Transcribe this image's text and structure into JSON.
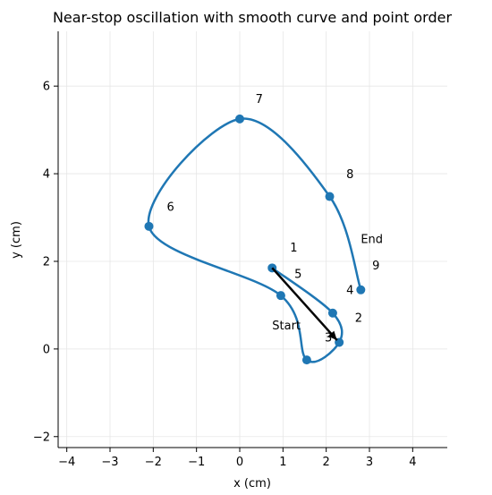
{
  "chart_data": {
    "type": "line",
    "title": "Near-stop oscillation with smooth curve and point order",
    "xlabel": "x (cm)",
    "ylabel": "y (cm)",
    "xlim": [
      -4.2,
      4.8
    ],
    "ylim": [
      -2.25,
      7.25
    ],
    "xticks": [
      -4,
      -3,
      -2,
      -1,
      0,
      1,
      2,
      3,
      4
    ],
    "yticks": [
      -2,
      0,
      2,
      4,
      6
    ],
    "grid": true,
    "series_color": "#1f77b4",
    "points": [
      {
        "x": 0.75,
        "y": 1.85
      },
      {
        "x": 2.15,
        "y": 0.82
      },
      {
        "x": 2.3,
        "y": 0.15
      },
      {
        "x": 1.55,
        "y": -0.25
      },
      {
        "x": 0.95,
        "y": 1.22
      },
      {
        "x": -2.1,
        "y": 2.8
      },
      {
        "x": 0.0,
        "y": 5.25
      },
      {
        "x": 2.08,
        "y": 3.48
      },
      {
        "x": 2.8,
        "y": 1.35
      }
    ],
    "point_labels": [
      {
        "text": "1",
        "x": 1.25,
        "y": 2.22
      },
      {
        "text": "2",
        "x": 2.75,
        "y": 0.62
      },
      {
        "text": "3",
        "x": 2.05,
        "y": 0.17
      },
      {
        "text": "4",
        "x": 2.55,
        "y": 1.25
      },
      {
        "text": "5",
        "x": 1.35,
        "y": 1.62
      },
      {
        "text": "6",
        "x": -1.6,
        "y": 3.15
      },
      {
        "text": "7",
        "x": 0.45,
        "y": 5.62
      },
      {
        "text": "8",
        "x": 2.55,
        "y": 3.9
      },
      {
        "text": "9",
        "x": 3.15,
        "y": 1.82
      }
    ],
    "annotations": [
      {
        "text": "Start",
        "x": 0.75,
        "y": 0.45
      },
      {
        "text": "End",
        "x": 2.8,
        "y": 2.42
      }
    ],
    "arrow": {
      "from": {
        "x": 0.75,
        "y": 1.85
      },
      "to": {
        "x": 2.25,
        "y": 0.2
      },
      "color": "#000000"
    }
  }
}
